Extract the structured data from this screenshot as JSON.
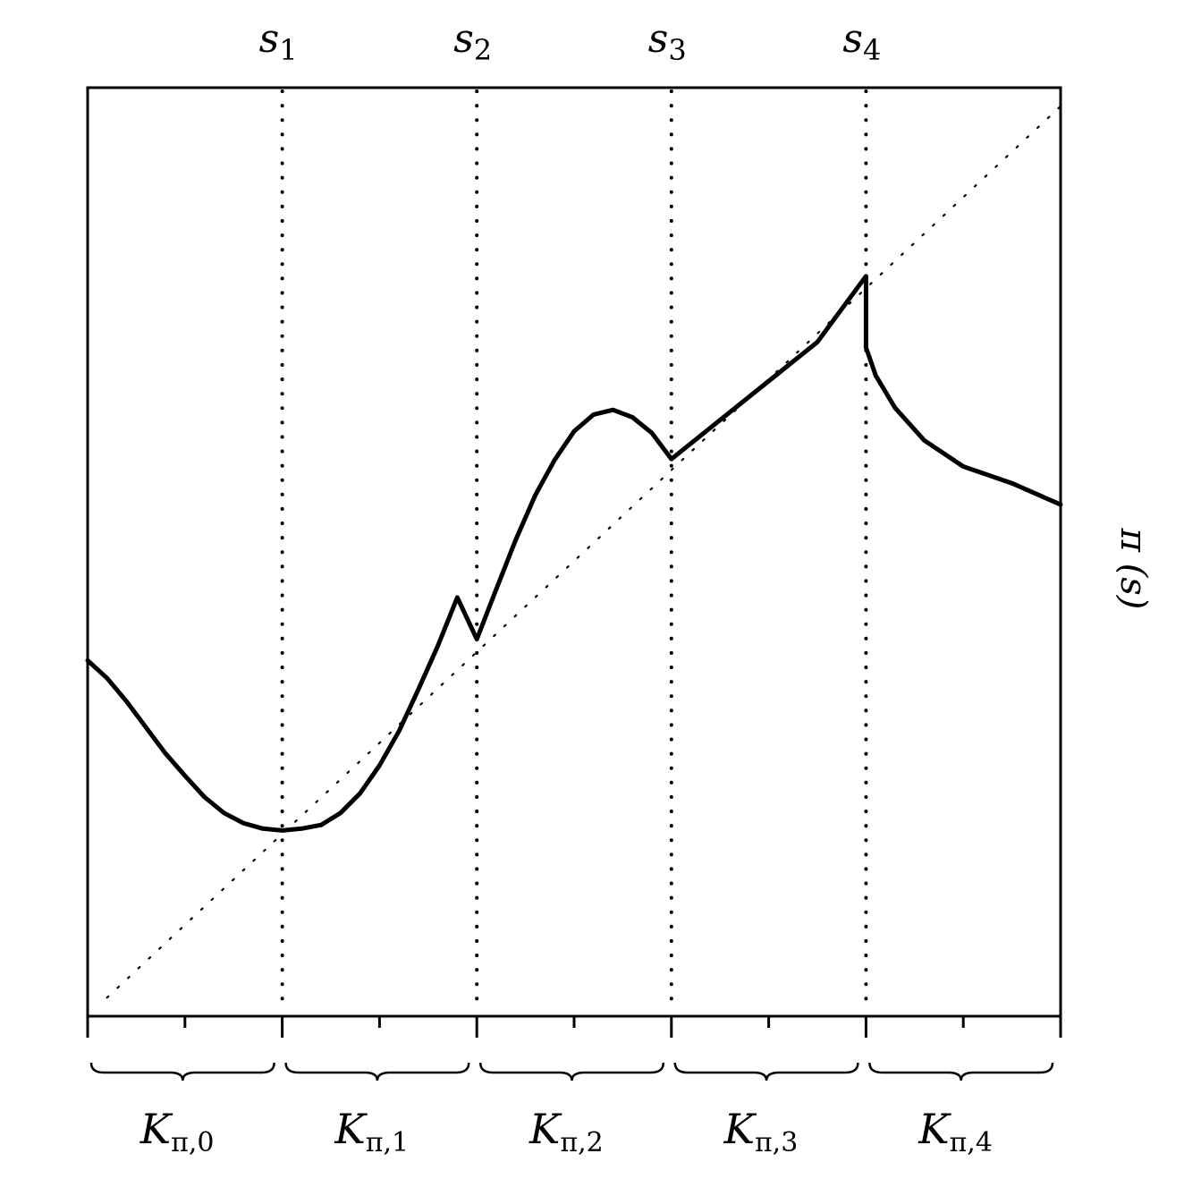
{
  "chart_data": {
    "type": "line",
    "ylabel_symbol": "π",
    "ylabel_arg": "(s)",
    "breakpoints": [
      {
        "base": "s",
        "index": "1",
        "x": 0.2
      },
      {
        "base": "s",
        "index": "2",
        "x": 0.4
      },
      {
        "base": "s",
        "index": "3",
        "x": 0.6
      },
      {
        "base": "s",
        "index": "4",
        "x": 0.8
      }
    ],
    "intervals": [
      {
        "base": "K",
        "index": "π,0"
      },
      {
        "base": "K",
        "index": "π,1"
      },
      {
        "base": "K",
        "index": "π,2"
      },
      {
        "base": "K",
        "index": "π,3"
      },
      {
        "base": "K",
        "index": "π,4"
      }
    ],
    "xlim": [
      0,
      1
    ],
    "ylim": [
      0,
      1
    ],
    "x_ticks": [
      0,
      0.1,
      0.2,
      0.3,
      0.4,
      0.5,
      0.6,
      0.7,
      0.8,
      0.9,
      1.0
    ],
    "reference_line": {
      "style": "dotted",
      "from": [
        0.02,
        0.02
      ],
      "to": [
        1.0,
        0.98
      ]
    },
    "series": [
      {
        "style": "solid",
        "x": [
          0.0,
          0.02,
          0.04,
          0.06,
          0.08,
          0.1,
          0.12,
          0.14,
          0.16,
          0.18,
          0.2,
          0.22,
          0.24,
          0.26,
          0.28,
          0.3,
          0.32,
          0.34,
          0.36,
          0.38,
          0.4,
          0.42,
          0.44,
          0.46,
          0.48,
          0.5,
          0.52,
          0.54,
          0.56,
          0.58,
          0.6,
          0.6,
          0.65,
          0.7,
          0.75,
          0.8,
          0.8,
          0.81,
          0.83,
          0.86,
          0.9,
          0.95,
          1.0
        ],
        "y": [
          0.383,
          0.364,
          0.339,
          0.311,
          0.283,
          0.259,
          0.236,
          0.219,
          0.208,
          0.202,
          0.2,
          0.202,
          0.206,
          0.219,
          0.24,
          0.27,
          0.307,
          0.352,
          0.399,
          0.451,
          0.406,
          0.46,
          0.513,
          0.561,
          0.599,
          0.63,
          0.648,
          0.653,
          0.645,
          0.628,
          0.6,
          0.6,
          0.642,
          0.684,
          0.726,
          0.797,
          0.72,
          0.69,
          0.655,
          0.62,
          0.592,
          0.574,
          0.551
        ]
      }
    ]
  }
}
